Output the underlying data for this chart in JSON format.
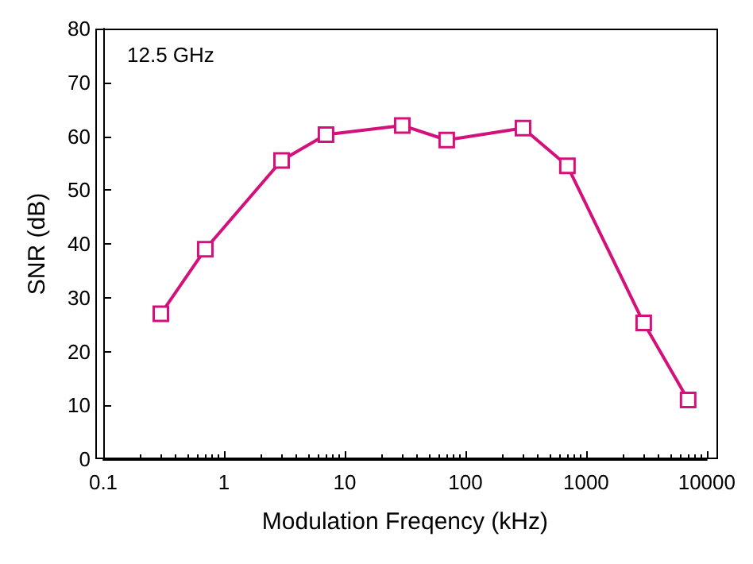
{
  "chart_data": {
    "type": "line",
    "xlabel": "Modulation Freqency (kHz)",
    "ylabel": "SNR (dB)",
    "annotations": [
      "12.5 GHz"
    ],
    "x": [
      0.3,
      0.7,
      3,
      7,
      30,
      70,
      300,
      700,
      3000,
      7000
    ],
    "series": [
      {
        "color": "#d4107a",
        "values": [
          27,
          39,
          55.5,
          60.3,
          62,
          59.3,
          61.5,
          54.5,
          25.3,
          11
        ]
      }
    ],
    "log": "x",
    "xlim": [
      0.1,
      10000
    ],
    "xticks": [
      0.1,
      1,
      10,
      100,
      1000,
      10000
    ],
    "ylim": [
      0,
      80
    ],
    "yticks": [
      0,
      10,
      20,
      30,
      40,
      50,
      60,
      70,
      80
    ],
    "grid": false,
    "marker": "square",
    "line_style": "solid"
  }
}
